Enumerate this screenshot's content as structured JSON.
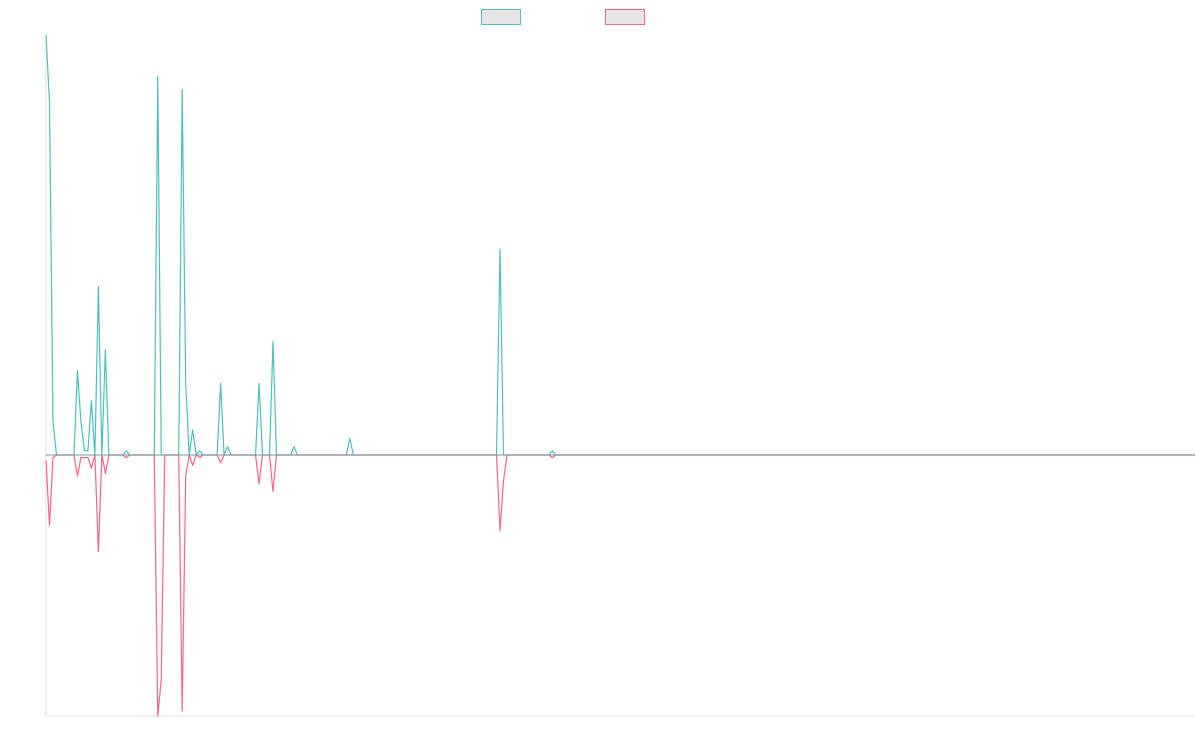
{
  "chart_data": {
    "type": "line",
    "title": "",
    "xlabel": "",
    "ylabel": "",
    "legend_position": "top-center",
    "grid": false,
    "x_count": 330,
    "ylim": [
      -1.05,
      1.05
    ],
    "colors": {
      "series_0": "#4bc0c0",
      "series_1": "#ff6384",
      "legend_fill": "#e6e6e6",
      "baseline": "#7a9aa8",
      "axis": "#e0e0e0"
    },
    "series": [
      {
        "name": "",
        "color": "#4bc0c0",
        "points": [
          [
            0,
            1.0
          ],
          [
            1,
            0.84
          ],
          [
            2,
            0.08
          ],
          [
            3,
            0.0
          ],
          [
            8,
            0.0
          ],
          [
            9,
            0.2
          ],
          [
            10,
            0.08
          ],
          [
            11,
            0.01
          ],
          [
            12,
            0.01
          ],
          [
            13,
            0.13
          ],
          [
            14,
            0.0
          ],
          [
            15,
            0.4
          ],
          [
            16,
            0.0
          ],
          [
            17,
            0.25
          ],
          [
            18,
            0.0
          ],
          [
            22,
            0.0
          ],
          [
            23,
            0.01
          ],
          [
            24,
            0.0
          ],
          [
            31,
            0.0
          ],
          [
            32,
            0.9
          ],
          [
            33,
            0.0
          ],
          [
            38,
            0.0
          ],
          [
            39,
            0.87
          ],
          [
            40,
            0.17
          ],
          [
            41,
            0.0
          ],
          [
            42,
            0.06
          ],
          [
            43,
            0.0
          ],
          [
            44,
            0.01
          ],
          [
            45,
            0.0
          ],
          [
            49,
            0.0
          ],
          [
            50,
            0.17
          ],
          [
            51,
            0.0
          ],
          [
            52,
            0.02
          ],
          [
            53,
            0.0
          ],
          [
            60,
            0.0
          ],
          [
            61,
            0.17
          ],
          [
            62,
            0.0
          ],
          [
            64,
            0.0
          ],
          [
            65,
            0.27
          ],
          [
            66,
            0.0
          ],
          [
            70,
            0.0
          ],
          [
            71,
            0.02
          ],
          [
            72,
            0.0
          ],
          [
            86,
            0.0
          ],
          [
            87,
            0.04
          ],
          [
            88,
            0.0
          ],
          [
            129,
            0.0
          ],
          [
            130,
            0.49
          ],
          [
            131,
            0.0
          ],
          [
            144,
            0.0
          ],
          [
            145,
            0.01
          ],
          [
            146,
            0.0
          ],
          [
            329,
            0.0
          ]
        ]
      },
      {
        "name": "",
        "color": "#ff6384",
        "points": [
          [
            0,
            -0.02
          ],
          [
            1,
            -0.27
          ],
          [
            2,
            -0.01
          ],
          [
            3,
            0.0
          ],
          [
            8,
            0.0
          ],
          [
            9,
            -0.08
          ],
          [
            10,
            -0.01
          ],
          [
            11,
            -0.01
          ],
          [
            12,
            -0.01
          ],
          [
            13,
            -0.05
          ],
          [
            14,
            0.0
          ],
          [
            15,
            -0.37
          ],
          [
            16,
            0.0
          ],
          [
            17,
            -0.07
          ],
          [
            18,
            0.0
          ],
          [
            22,
            0.0
          ],
          [
            23,
            -0.01
          ],
          [
            24,
            0.0
          ],
          [
            31,
            0.0
          ],
          [
            32,
            -1.0
          ],
          [
            33,
            -0.86
          ],
          [
            34,
            0.0
          ],
          [
            38,
            0.0
          ],
          [
            39,
            -0.98
          ],
          [
            40,
            -0.08
          ],
          [
            41,
            0.0
          ],
          [
            42,
            -0.04
          ],
          [
            43,
            0.0
          ],
          [
            44,
            -0.01
          ],
          [
            45,
            0.0
          ],
          [
            49,
            0.0
          ],
          [
            50,
            -0.03
          ],
          [
            51,
            0.0
          ],
          [
            60,
            0.0
          ],
          [
            61,
            -0.11
          ],
          [
            62,
            0.0
          ],
          [
            64,
            0.0
          ],
          [
            65,
            -0.14
          ],
          [
            66,
            0.0
          ],
          [
            129,
            0.0
          ],
          [
            130,
            -0.29
          ],
          [
            131,
            -0.1
          ],
          [
            132,
            0.0
          ],
          [
            144,
            0.0
          ],
          [
            145,
            -0.01
          ],
          [
            146,
            0.0
          ],
          [
            329,
            0.0
          ]
        ]
      }
    ]
  }
}
